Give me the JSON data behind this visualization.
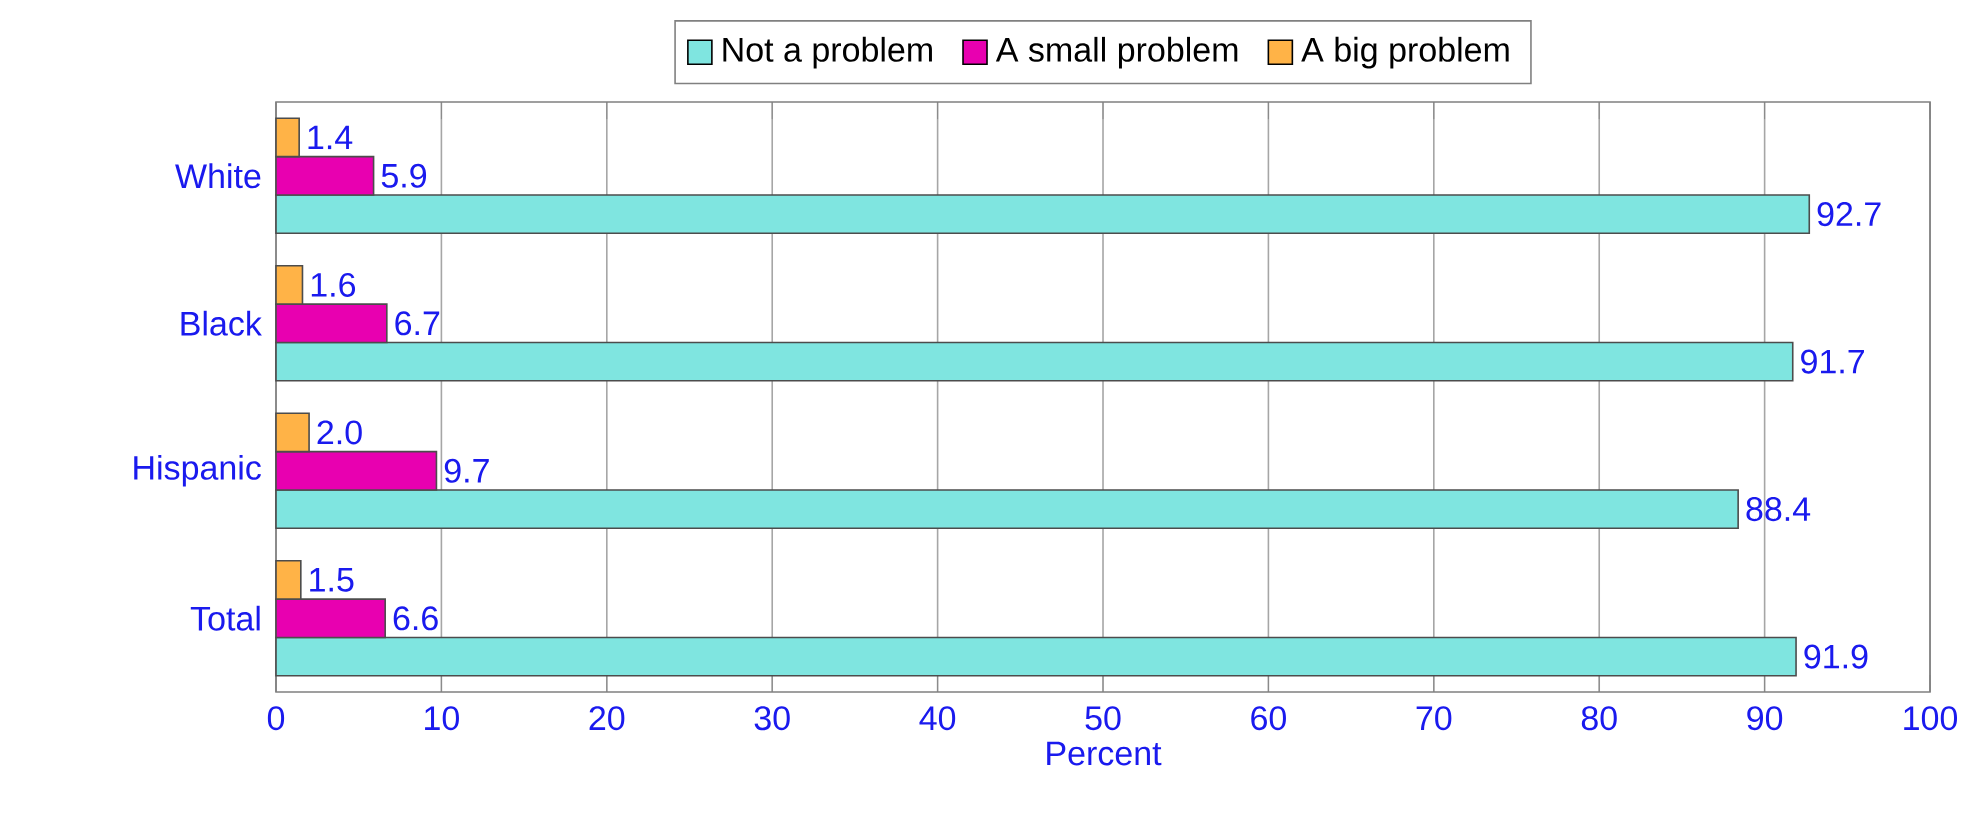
{
  "chart_data": {
    "type": "bar",
    "orientation": "horizontal",
    "categories": [
      "White",
      "Black",
      "Hispanic",
      "Total"
    ],
    "series": [
      {
        "name": "Not a problem",
        "color": "#7fe5e0",
        "values": [
          92.7,
          91.7,
          88.4,
          91.9
        ],
        "value_labels": [
          "92.7",
          "91.7",
          "88.4",
          "91.9"
        ]
      },
      {
        "name": "A small problem",
        "color": "#e800b0",
        "values": [
          5.9,
          6.7,
          9.7,
          6.6
        ],
        "value_labels": [
          "5.9",
          "6.7",
          "9.7",
          "6.6"
        ]
      },
      {
        "name": "A big problem",
        "color": "#ffb347",
        "values": [
          1.4,
          1.6,
          2.0,
          1.5
        ],
        "value_labels": [
          "1.4",
          "1.6",
          "2.0",
          "1.5"
        ]
      }
    ],
    "xlabel": "Percent",
    "xlim": [
      0,
      100
    ],
    "xticks": [
      0,
      10,
      20,
      30,
      40,
      50,
      60,
      70,
      80,
      90,
      100
    ],
    "grid": "x",
    "legend": "top"
  }
}
